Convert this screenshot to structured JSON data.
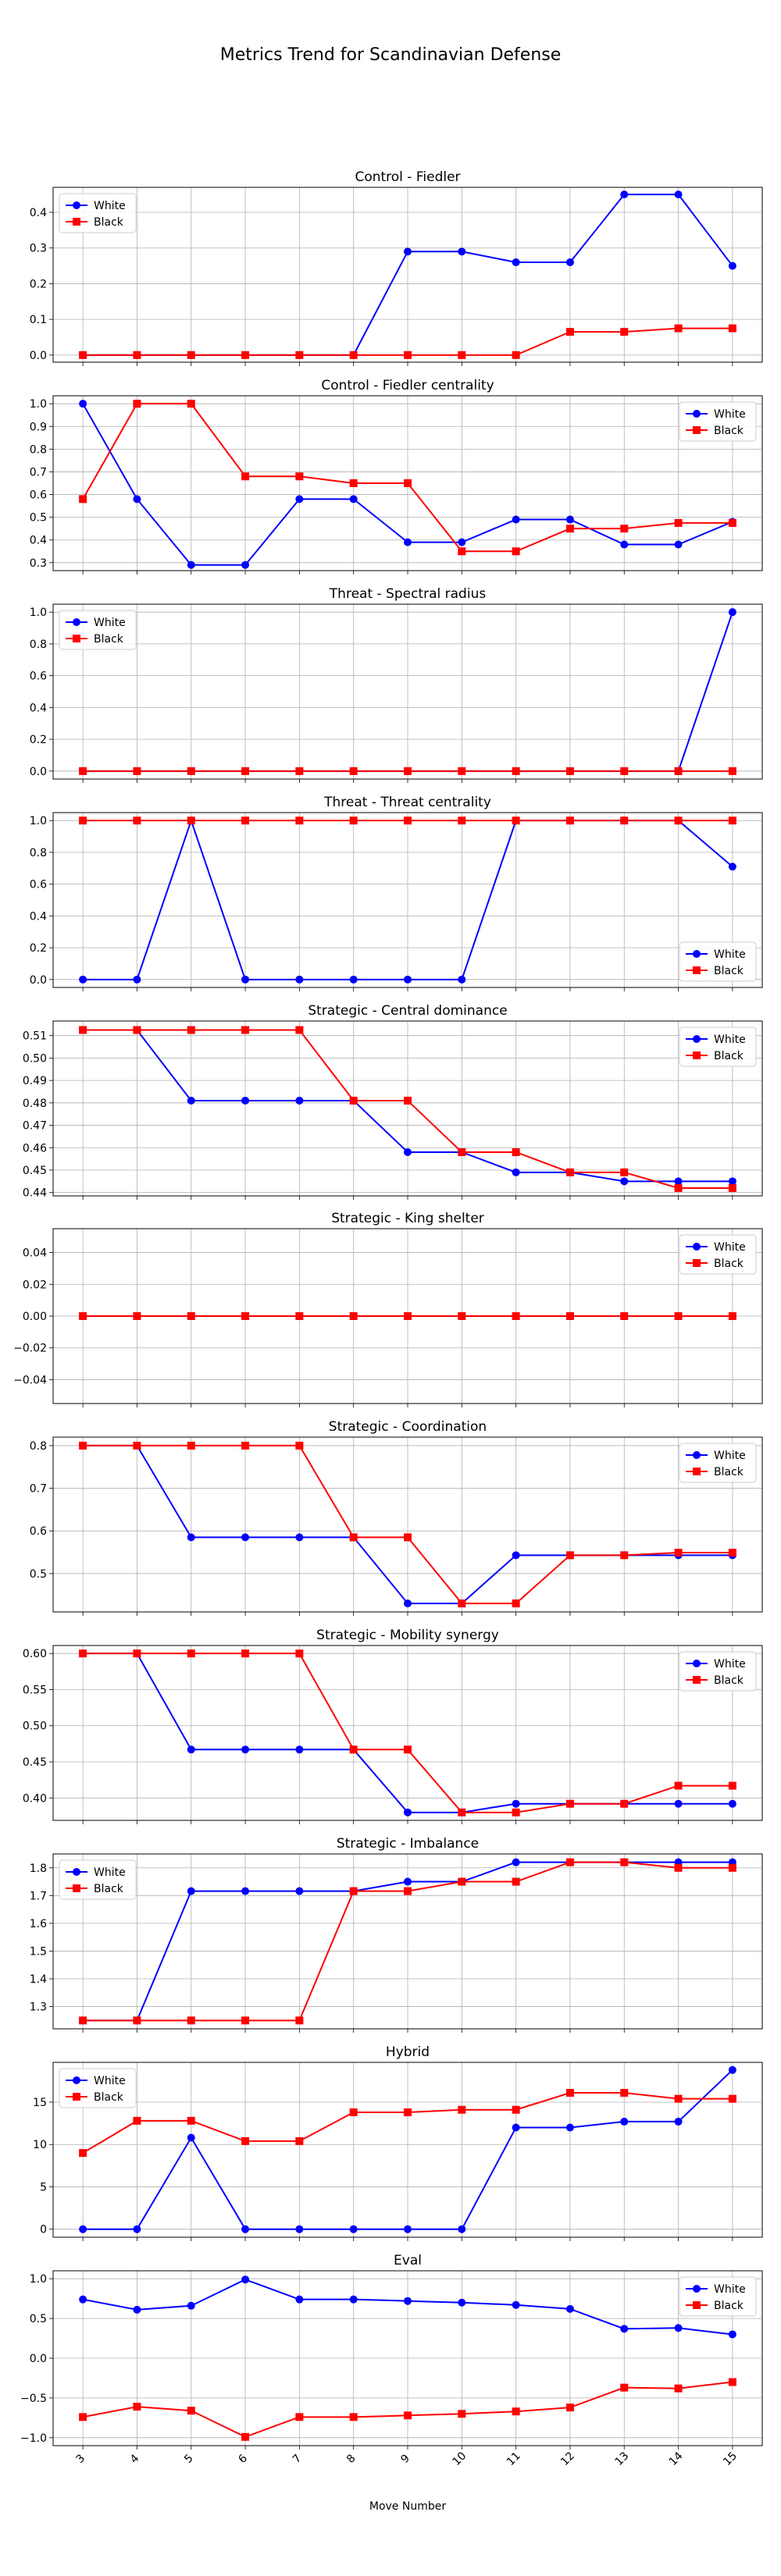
{
  "title": "Metrics Trend for Scandinavian Defense",
  "xlabel": "Move Number",
  "x_ticks": [
    "3",
    "4",
    "5",
    "6",
    "7",
    "8",
    "9",
    "10",
    "11",
    "12",
    "13",
    "14",
    "15"
  ],
  "colors": {
    "White": "#0000ff",
    "Black": "#ff0000"
  },
  "chart_data": [
    {
      "type": "line",
      "title": "Control - Fiedler",
      "legend": "upper-left",
      "x": [
        3,
        4,
        5,
        6,
        7,
        8,
        9,
        10,
        11,
        12,
        13,
        14,
        15
      ],
      "ylim": [
        -0.02,
        0.47
      ],
      "yticks": [
        0.0,
        0.1,
        0.2,
        0.3,
        0.4
      ],
      "ytick_labels": [
        "0.0",
        "0.1",
        "0.2",
        "0.3",
        "0.4"
      ],
      "series": [
        {
          "name": "White",
          "marker": "circle",
          "values": [
            0,
            0,
            0,
            0,
            0,
            0,
            0.29,
            0.29,
            0.26,
            0.26,
            0.45,
            0.45,
            0.25
          ]
        },
        {
          "name": "Black",
          "marker": "square",
          "values": [
            0,
            0,
            0,
            0,
            0,
            0,
            0,
            0,
            0,
            0.065,
            0.065,
            0.075,
            0.075
          ]
        }
      ]
    },
    {
      "type": "line",
      "title": "Control - Fiedler centrality",
      "legend": "upper-right",
      "x": [
        3,
        4,
        5,
        6,
        7,
        8,
        9,
        10,
        11,
        12,
        13,
        14,
        15
      ],
      "ylim": [
        0.265,
        1.035
      ],
      "yticks": [
        0.3,
        0.4,
        0.5,
        0.6,
        0.7,
        0.8,
        0.9,
        1.0
      ],
      "ytick_labels": [
        "0.3",
        "0.4",
        "0.5",
        "0.6",
        "0.7",
        "0.8",
        "0.9",
        "1.0"
      ],
      "series": [
        {
          "name": "White",
          "marker": "circle",
          "values": [
            1.0,
            0.58,
            0.29,
            0.29,
            0.58,
            0.58,
            0.39,
            0.39,
            0.49,
            0.49,
            0.38,
            0.38,
            0.48
          ]
        },
        {
          "name": "Black",
          "marker": "square",
          "values": [
            0.58,
            1.0,
            1.0,
            0.68,
            0.68,
            0.65,
            0.65,
            0.35,
            0.35,
            0.45,
            0.45,
            0.475,
            0.475
          ]
        }
      ]
    },
    {
      "type": "line",
      "title": "Threat - Spectral radius",
      "legend": "upper-left",
      "x": [
        3,
        4,
        5,
        6,
        7,
        8,
        9,
        10,
        11,
        12,
        13,
        14,
        15
      ],
      "ylim": [
        -0.05,
        1.05
      ],
      "yticks": [
        0.0,
        0.2,
        0.4,
        0.6,
        0.8,
        1.0
      ],
      "ytick_labels": [
        "0.0",
        "0.2",
        "0.4",
        "0.6",
        "0.8",
        "1.0"
      ],
      "series": [
        {
          "name": "White",
          "marker": "circle",
          "values": [
            0,
            0,
            0,
            0,
            0,
            0,
            0,
            0,
            0,
            0,
            0,
            0,
            1.0
          ]
        },
        {
          "name": "Black",
          "marker": "square",
          "values": [
            0,
            0,
            0,
            0,
            0,
            0,
            0,
            0,
            0,
            0,
            0,
            0,
            0
          ]
        }
      ]
    },
    {
      "type": "line",
      "title": "Threat - Threat centrality",
      "legend": "lower-right",
      "x": [
        3,
        4,
        5,
        6,
        7,
        8,
        9,
        10,
        11,
        12,
        13,
        14,
        15
      ],
      "ylim": [
        -0.05,
        1.05
      ],
      "yticks": [
        0.0,
        0.2,
        0.4,
        0.6,
        0.8,
        1.0
      ],
      "ytick_labels": [
        "0.0",
        "0.2",
        "0.4",
        "0.6",
        "0.8",
        "1.0"
      ],
      "series": [
        {
          "name": "White",
          "marker": "circle",
          "values": [
            0,
            0,
            1.0,
            0,
            0,
            0,
            0,
            0,
            1.0,
            1.0,
            1.0,
            1.0,
            0.71
          ]
        },
        {
          "name": "Black",
          "marker": "square",
          "values": [
            1,
            1,
            1,
            1,
            1,
            1,
            1,
            1,
            1,
            1,
            1,
            1,
            1
          ]
        }
      ]
    },
    {
      "type": "line",
      "title": "Strategic - Central dominance",
      "legend": "upper-right",
      "x": [
        3,
        4,
        5,
        6,
        7,
        8,
        9,
        10,
        11,
        12,
        13,
        14,
        15
      ],
      "ylim": [
        0.4385,
        0.5165
      ],
      "yticks": [
        0.44,
        0.45,
        0.46,
        0.47,
        0.48,
        0.49,
        0.5,
        0.51
      ],
      "ytick_labels": [
        "0.44",
        "0.45",
        "0.46",
        "0.47",
        "0.48",
        "0.49",
        "0.50",
        "0.51"
      ],
      "series": [
        {
          "name": "White",
          "marker": "circle",
          "values": [
            0.5125,
            0.5125,
            0.481,
            0.481,
            0.481,
            0.481,
            0.458,
            0.458,
            0.449,
            0.449,
            0.445,
            0.445,
            0.445
          ]
        },
        {
          "name": "Black",
          "marker": "square",
          "values": [
            0.5125,
            0.5125,
            0.5125,
            0.5125,
            0.5125,
            0.481,
            0.481,
            0.458,
            0.458,
            0.449,
            0.449,
            0.442,
            0.442
          ]
        }
      ]
    },
    {
      "type": "line",
      "title": "Strategic - King shelter",
      "legend": "upper-right",
      "x": [
        3,
        4,
        5,
        6,
        7,
        8,
        9,
        10,
        11,
        12,
        13,
        14,
        15
      ],
      "ylim": [
        -0.055,
        0.055
      ],
      "yticks": [
        -0.04,
        -0.02,
        0.0,
        0.02,
        0.04
      ],
      "ytick_labels": [
        "−0.04",
        "−0.02",
        "0.00",
        "0.02",
        "0.04"
      ],
      "series": [
        {
          "name": "White",
          "marker": "circle",
          "values": [
            0,
            0,
            0,
            0,
            0,
            0,
            0,
            0,
            0,
            0,
            0,
            0,
            0
          ]
        },
        {
          "name": "Black",
          "marker": "square",
          "values": [
            0,
            0,
            0,
            0,
            0,
            0,
            0,
            0,
            0,
            0,
            0,
            0,
            0
          ]
        }
      ]
    },
    {
      "type": "line",
      "title": "Strategic - Coordination",
      "legend": "upper-right",
      "x": [
        3,
        4,
        5,
        6,
        7,
        8,
        9,
        10,
        11,
        12,
        13,
        14,
        15
      ],
      "ylim": [
        0.41,
        0.82
      ],
      "yticks": [
        0.5,
        0.6,
        0.7,
        0.8
      ],
      "ytick_labels": [
        "0.5",
        "0.6",
        "0.7",
        "0.8"
      ],
      "series": [
        {
          "name": "White",
          "marker": "circle",
          "values": [
            0.8,
            0.8,
            0.585,
            0.585,
            0.585,
            0.585,
            0.43,
            0.43,
            0.543,
            0.543,
            0.543,
            0.543,
            0.543
          ]
        },
        {
          "name": "Black",
          "marker": "square",
          "values": [
            0.8,
            0.8,
            0.8,
            0.8,
            0.8,
            0.585,
            0.585,
            0.43,
            0.43,
            0.543,
            0.543,
            0.549,
            0.549
          ]
        }
      ]
    },
    {
      "type": "line",
      "title": "Strategic - Mobility synergy",
      "legend": "upper-right",
      "x": [
        3,
        4,
        5,
        6,
        7,
        8,
        9,
        10,
        11,
        12,
        13,
        14,
        15
      ],
      "ylim": [
        0.369,
        0.611
      ],
      "yticks": [
        0.4,
        0.45,
        0.5,
        0.55,
        0.6
      ],
      "ytick_labels": [
        "0.40",
        "0.45",
        "0.50",
        "0.55",
        "0.60"
      ],
      "series": [
        {
          "name": "White",
          "marker": "circle",
          "values": [
            0.6,
            0.6,
            0.467,
            0.467,
            0.467,
            0.467,
            0.38,
            0.38,
            0.392,
            0.392,
            0.392,
            0.392,
            0.392
          ]
        },
        {
          "name": "Black",
          "marker": "square",
          "values": [
            0.6,
            0.6,
            0.6,
            0.6,
            0.6,
            0.467,
            0.467,
            0.38,
            0.38,
            0.392,
            0.392,
            0.417,
            0.417
          ]
        }
      ]
    },
    {
      "type": "line",
      "title": "Strategic - Imbalance",
      "legend": "upper-left",
      "x": [
        3,
        4,
        5,
        6,
        7,
        8,
        9,
        10,
        11,
        12,
        13,
        14,
        15
      ],
      "ylim": [
        1.22,
        1.85
      ],
      "yticks": [
        1.3,
        1.4,
        1.5,
        1.6,
        1.7,
        1.8
      ],
      "ytick_labels": [
        "1.3",
        "1.4",
        "1.5",
        "1.6",
        "1.7",
        "1.8"
      ],
      "series": [
        {
          "name": "White",
          "marker": "circle",
          "values": [
            1.25,
            1.25,
            1.716,
            1.716,
            1.716,
            1.716,
            1.75,
            1.75,
            1.82,
            1.82,
            1.82,
            1.82,
            1.82
          ]
        },
        {
          "name": "Black",
          "marker": "square",
          "values": [
            1.25,
            1.25,
            1.25,
            1.25,
            1.25,
            1.716,
            1.716,
            1.75,
            1.75,
            1.82,
            1.82,
            1.8,
            1.8
          ]
        }
      ]
    },
    {
      "type": "line",
      "title": "Hybrid",
      "legend": "upper-left",
      "x": [
        3,
        4,
        5,
        6,
        7,
        8,
        9,
        10,
        11,
        12,
        13,
        14,
        15
      ],
      "ylim": [
        -0.95,
        19.7
      ],
      "yticks": [
        0,
        5,
        10,
        15
      ],
      "ytick_labels": [
        "0",
        "5",
        "10",
        "15"
      ],
      "series": [
        {
          "name": "White",
          "marker": "circle",
          "values": [
            0,
            0,
            10.8,
            0,
            0,
            0,
            0,
            0,
            12.0,
            12.0,
            12.7,
            12.7,
            18.8
          ]
        },
        {
          "name": "Black",
          "marker": "square",
          "values": [
            9.0,
            12.8,
            12.8,
            10.4,
            10.4,
            13.8,
            13.8,
            14.1,
            14.1,
            16.1,
            16.1,
            15.4,
            15.4
          ]
        }
      ]
    },
    {
      "type": "line",
      "title": "Eval",
      "legend": "upper-right",
      "x": [
        3,
        4,
        5,
        6,
        7,
        8,
        9,
        10,
        11,
        12,
        13,
        14,
        15
      ],
      "ylim": [
        -1.1,
        1.1
      ],
      "yticks": [
        -1.0,
        -0.5,
        0.0,
        0.5,
        1.0
      ],
      "ytick_labels": [
        "−1.0",
        "−0.5",
        "0.0",
        "0.5",
        "1.0"
      ],
      "series": [
        {
          "name": "White",
          "marker": "circle",
          "values": [
            0.74,
            0.61,
            0.66,
            0.99,
            0.74,
            0.74,
            0.72,
            0.7,
            0.67,
            0.62,
            0.37,
            0.38,
            0.3
          ]
        },
        {
          "name": "Black",
          "marker": "square",
          "values": [
            -0.74,
            -0.61,
            -0.66,
            -0.99,
            -0.74,
            -0.74,
            -0.72,
            -0.7,
            -0.67,
            -0.62,
            -0.37,
            -0.38,
            -0.3
          ]
        }
      ]
    }
  ]
}
